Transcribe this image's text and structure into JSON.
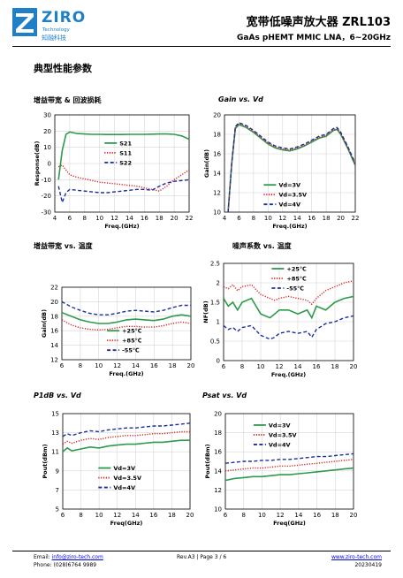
{
  "header": {
    "brand_name": "ZIRO",
    "brand_sub_en": "Technology",
    "brand_sub_cn": "知融科技",
    "title": "宽带低噪声放大器 ZRL103",
    "subtitle": "GaAs pHEMT MMIC LNA，6~20GHz"
  },
  "section_title": "典型性能参数",
  "colors": {
    "green": "#2e9a4c",
    "red": "#d42020",
    "blue": "#1a2e9c",
    "grid": "#d8d8d8"
  },
  "footer": {
    "email_label": "Email:",
    "email": "info@ziro-tech.com",
    "phone": "Phone:  (028)6764 9989",
    "rev": "Rev.A3 | Page 3 / 6",
    "website": "www.ziro-tech.com",
    "date": "20230419"
  },
  "chart_data": [
    {
      "id": "c1",
      "type": "line",
      "title": "增益带宽 & 回波损耗",
      "xlabel": "Freq.(GHz)",
      "ylabel": "Response(dB)",
      "xlim": [
        4,
        22
      ],
      "ylim": [
        -30,
        30
      ],
      "xticks": [
        4,
        6,
        8,
        10,
        12,
        14,
        16,
        18,
        20,
        22
      ],
      "yticks": [
        -30,
        -20,
        -10,
        0,
        10,
        20,
        30
      ],
      "legend": "inside-right",
      "series": [
        {
          "name": "S21",
          "style": "solid",
          "color": "#2e9a4c",
          "x": [
            4.5,
            5,
            5.5,
            6,
            7,
            8,
            9,
            10,
            11,
            12,
            13,
            14,
            15,
            16,
            17,
            18,
            19,
            20,
            21,
            22
          ],
          "y": [
            -10,
            8,
            18,
            19.5,
            18.5,
            18.2,
            18.0,
            18.0,
            17.9,
            17.9,
            17.9,
            18.0,
            18.0,
            18.0,
            18.1,
            18.2,
            18.2,
            18.0,
            17.0,
            15.0
          ]
        },
        {
          "name": "S11",
          "style": "dot",
          "color": "#d42020",
          "x": [
            4.5,
            5,
            5.5,
            6,
            7,
            8,
            9,
            10,
            11,
            12,
            13,
            14,
            15,
            16,
            17,
            18,
            19,
            20,
            21,
            22
          ],
          "y": [
            -2,
            -1,
            -4,
            -7,
            -8.5,
            -9.5,
            -10.5,
            -11.5,
            -12,
            -12.5,
            -13,
            -13.5,
            -14,
            -15,
            -16,
            -17,
            -14,
            -10,
            -7,
            -4
          ]
        },
        {
          "name": "S22",
          "style": "dash",
          "color": "#1a2e9c",
          "x": [
            4.5,
            5,
            5.5,
            6,
            7,
            8,
            9,
            10,
            11,
            12,
            13,
            14,
            15,
            16,
            17,
            18,
            19,
            20,
            21,
            22
          ],
          "y": [
            -14,
            -24,
            -18,
            -16,
            -16.5,
            -17,
            -17.5,
            -18,
            -18,
            -17.5,
            -17,
            -16.5,
            -16,
            -16,
            -16.5,
            -14,
            -12,
            -11,
            -10.5,
            -10
          ]
        }
      ]
    },
    {
      "id": "c2",
      "type": "line",
      "title": "Gain vs. Vd",
      "xlabel": "Freq.(GHz)",
      "ylabel": "Gain(dB)",
      "xlim": [
        4,
        22
      ],
      "ylim": [
        10,
        20
      ],
      "xticks": [
        4,
        6,
        8,
        10,
        12,
        14,
        16,
        18,
        20,
        22
      ],
      "yticks": [
        10,
        12,
        14,
        16,
        18,
        20
      ],
      "legend": "inside-bottom-center",
      "series": [
        {
          "name": "Vd=3V",
          "style": "solid",
          "color": "#2e9a4c",
          "x": [
            4.5,
            5,
            5.5,
            6,
            7,
            8,
            9,
            10,
            11,
            12,
            13,
            14,
            15,
            16,
            17,
            18,
            19,
            19.5,
            20,
            21,
            22
          ],
          "y": [
            10,
            15,
            18.6,
            19.0,
            18.7,
            18.2,
            17.6,
            17.0,
            16.6,
            16.4,
            16.3,
            16.5,
            16.8,
            17.2,
            17.6,
            17.8,
            18.4,
            18.5,
            18.0,
            16.5,
            14.8
          ]
        },
        {
          "name": "Vd=3.5V",
          "style": "dot",
          "color": "#d42020",
          "x": [
            4.5,
            5,
            5.5,
            6,
            7,
            8,
            9,
            10,
            11,
            12,
            13,
            14,
            15,
            16,
            17,
            18,
            19,
            19.5,
            20,
            21,
            22
          ],
          "y": [
            10,
            15,
            18.7,
            19.1,
            18.8,
            18.3,
            17.7,
            17.1,
            16.7,
            16.5,
            16.4,
            16.6,
            16.9,
            17.3,
            17.7,
            17.9,
            18.5,
            18.6,
            18.1,
            16.6,
            14.9
          ]
        },
        {
          "name": "Vd=4V",
          "style": "dash",
          "color": "#1a2e9c",
          "x": [
            4.5,
            5,
            5.5,
            6,
            7,
            8,
            9,
            10,
            11,
            12,
            13,
            14,
            15,
            16,
            17,
            18,
            19,
            19.5,
            20,
            21,
            22
          ],
          "y": [
            10,
            15,
            18.8,
            19.2,
            18.9,
            18.4,
            17.8,
            17.2,
            16.8,
            16.6,
            16.5,
            16.7,
            17.0,
            17.4,
            17.8,
            18.0,
            18.6,
            18.7,
            18.2,
            16.7,
            15.0
          ]
        }
      ]
    },
    {
      "id": "c3",
      "type": "line",
      "title": "增益带宽 vs. 温度",
      "xlabel": "Freq.(GHz)",
      "ylabel": "Gain(dB)",
      "xlim": [
        6,
        20
      ],
      "ylim": [
        12,
        22
      ],
      "xticks": [
        6,
        8,
        10,
        12,
        14,
        16,
        18,
        20
      ],
      "yticks": [
        12,
        14,
        16,
        18,
        20,
        22
      ],
      "legend": "inside-bottom-right",
      "series": [
        {
          "name": "+25℃",
          "style": "solid",
          "color": "#2e9a4c",
          "x": [
            6,
            7,
            8,
            9,
            10,
            11,
            12,
            13,
            14,
            15,
            16,
            17,
            18,
            19,
            20
          ],
          "y": [
            18.5,
            18.0,
            17.5,
            17.2,
            17.0,
            17.0,
            17.2,
            17.5,
            17.6,
            17.5,
            17.4,
            17.6,
            18.0,
            18.2,
            18.0
          ]
        },
        {
          "name": "+85℃",
          "style": "dot",
          "color": "#d42020",
          "x": [
            6,
            7,
            8,
            9,
            10,
            11,
            12,
            13,
            14,
            15,
            16,
            17,
            18,
            19,
            20
          ],
          "y": [
            17.5,
            16.8,
            16.4,
            16.2,
            16.1,
            16.2,
            16.4,
            16.6,
            16.6,
            16.5,
            16.5,
            16.7,
            17.0,
            17.2,
            17.0
          ]
        },
        {
          "name": "-55℃",
          "style": "dash",
          "color": "#1a2e9c",
          "x": [
            6,
            7,
            8,
            9,
            10,
            11,
            12,
            13,
            14,
            15,
            16,
            17,
            18,
            19,
            20
          ],
          "y": [
            20.0,
            19.3,
            18.8,
            18.4,
            18.2,
            18.2,
            18.4,
            18.7,
            18.8,
            18.7,
            18.6,
            18.8,
            19.2,
            19.5,
            19.5
          ]
        }
      ]
    },
    {
      "id": "c4",
      "type": "line",
      "title": "噪声系数 vs. 温度",
      "xlabel": "Freq.(GHz)",
      "ylabel": "NF(dB)",
      "xlim": [
        6,
        20
      ],
      "ylim": [
        0,
        2.5
      ],
      "xticks": [
        6,
        8,
        10,
        12,
        14,
        16,
        18,
        20
      ],
      "yticks": [
        0,
        0.5,
        1,
        1.5,
        2,
        2.5
      ],
      "legend": "inside-top-center",
      "series": [
        {
          "name": "+25℃",
          "style": "solid",
          "color": "#2e9a4c",
          "x": [
            6,
            6.5,
            7,
            7.5,
            8,
            9,
            10,
            11,
            11.5,
            12,
            13,
            14,
            15,
            15.5,
            16,
            17,
            18,
            19,
            20
          ],
          "y": [
            1.6,
            1.4,
            1.5,
            1.3,
            1.5,
            1.6,
            1.2,
            1.1,
            1.2,
            1.3,
            1.3,
            1.2,
            1.3,
            1.1,
            1.4,
            1.3,
            1.5,
            1.6,
            1.65
          ]
        },
        {
          "name": "+85℃",
          "style": "dot",
          "color": "#d42020",
          "x": [
            6,
            6.5,
            7,
            7.5,
            8,
            9,
            10,
            11,
            11.5,
            12,
            13,
            14,
            15,
            15.5,
            16,
            17,
            18,
            19,
            20
          ],
          "y": [
            1.9,
            1.85,
            1.95,
            1.8,
            1.9,
            1.95,
            1.7,
            1.6,
            1.55,
            1.6,
            1.65,
            1.6,
            1.55,
            1.45,
            1.6,
            1.8,
            1.9,
            2.0,
            2.05
          ]
        },
        {
          "name": "-55℃",
          "style": "dash",
          "color": "#1a2e9c",
          "x": [
            6,
            6.5,
            7,
            7.5,
            8,
            9,
            10,
            11,
            11.5,
            12,
            13,
            14,
            15,
            15.5,
            16,
            17,
            18,
            19,
            20
          ],
          "y": [
            0.9,
            0.8,
            0.85,
            0.75,
            0.85,
            0.9,
            0.65,
            0.55,
            0.6,
            0.7,
            0.75,
            0.7,
            0.75,
            0.6,
            0.8,
            0.95,
            1.0,
            1.1,
            1.15
          ]
        }
      ]
    },
    {
      "id": "c5",
      "type": "line",
      "title": "P1dB vs. Vd",
      "xlabel": "Freq(GHz)",
      "ylabel": "Pout(dBm)",
      "xlim": [
        6,
        20
      ],
      "ylim": [
        5,
        15
      ],
      "xticks": [
        6,
        8,
        10,
        12,
        14,
        16,
        18,
        20
      ],
      "yticks": [
        5,
        7,
        9,
        11,
        13,
        15
      ],
      "legend": "inside-bottom-center",
      "series": [
        {
          "name": "Vd=3V",
          "style": "solid",
          "color": "#2e9a4c",
          "x": [
            6,
            6.5,
            7,
            8,
            9,
            10,
            11,
            12,
            13,
            14,
            15,
            16,
            17,
            18,
            19,
            20
          ],
          "y": [
            11.0,
            11.4,
            11.1,
            11.3,
            11.5,
            11.4,
            11.6,
            11.7,
            11.8,
            11.8,
            11.9,
            12.0,
            12.0,
            12.1,
            12.2,
            12.2
          ]
        },
        {
          "name": "Vd=3.5V",
          "style": "dot",
          "color": "#d42020",
          "x": [
            6,
            6.5,
            7,
            8,
            9,
            10,
            11,
            12,
            13,
            14,
            15,
            16,
            17,
            18,
            19,
            20
          ],
          "y": [
            11.8,
            12.1,
            11.9,
            12.2,
            12.4,
            12.3,
            12.5,
            12.6,
            12.7,
            12.7,
            12.8,
            12.9,
            12.9,
            13.0,
            13.1,
            13.1
          ]
        },
        {
          "name": "Vd=4V",
          "style": "dash",
          "color": "#1a2e9c",
          "x": [
            6,
            6.5,
            7,
            8,
            9,
            10,
            11,
            12,
            13,
            14,
            15,
            16,
            17,
            18,
            19,
            20
          ],
          "y": [
            12.6,
            12.9,
            12.7,
            13.0,
            13.2,
            13.1,
            13.3,
            13.4,
            13.5,
            13.5,
            13.6,
            13.7,
            13.7,
            13.8,
            13.9,
            14.0
          ]
        }
      ]
    },
    {
      "id": "c6",
      "type": "line",
      "title": "Psat vs. Vd",
      "xlabel": "Freq(GHz)",
      "ylabel": "Pout(dBm)",
      "xlim": [
        6,
        20
      ],
      "ylim": [
        10,
        20
      ],
      "xticks": [
        6,
        8,
        10,
        12,
        14,
        16,
        18,
        20
      ],
      "yticks": [
        10,
        12,
        14,
        16,
        18,
        20
      ],
      "legend": "inside-top-center",
      "series": [
        {
          "name": "Vd=3V",
          "style": "solid",
          "color": "#2e9a4c",
          "x": [
            6,
            7,
            8,
            9,
            10,
            11,
            12,
            13,
            14,
            15,
            16,
            17,
            18,
            19,
            20
          ],
          "y": [
            13.0,
            13.2,
            13.3,
            13.4,
            13.4,
            13.5,
            13.6,
            13.6,
            13.7,
            13.8,
            13.9,
            14.0,
            14.1,
            14.2,
            14.3
          ]
        },
        {
          "name": "Vd=3.5V",
          "style": "dot",
          "color": "#d42020",
          "x": [
            6,
            7,
            8,
            9,
            10,
            11,
            12,
            13,
            14,
            15,
            16,
            17,
            18,
            19,
            20
          ],
          "y": [
            14.0,
            14.1,
            14.2,
            14.3,
            14.3,
            14.4,
            14.5,
            14.5,
            14.6,
            14.7,
            14.8,
            14.9,
            15.0,
            15.1,
            15.2
          ]
        },
        {
          "name": "Vd=4V",
          "style": "dash",
          "color": "#1a2e9c",
          "x": [
            6,
            7,
            8,
            9,
            10,
            11,
            12,
            13,
            14,
            15,
            16,
            17,
            18,
            19,
            20
          ],
          "y": [
            14.8,
            14.9,
            15.0,
            15.0,
            15.1,
            15.1,
            15.2,
            15.2,
            15.3,
            15.4,
            15.5,
            15.5,
            15.6,
            15.7,
            15.8
          ]
        }
      ]
    }
  ]
}
